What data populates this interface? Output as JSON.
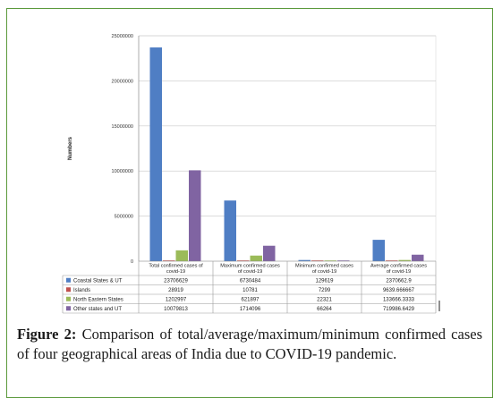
{
  "chart_data": {
    "type": "bar",
    "ylabel": "Numbers",
    "ylim": [
      0,
      25000000
    ],
    "yticks": [
      "0",
      "5000000",
      "10000000",
      "15000000",
      "20000000",
      "25000000"
    ],
    "grid": true,
    "legend": "data-table",
    "categories": [
      "Total confirmed cases of covid-19",
      "Maximum confirmed cases of covid-19",
      "Minimum confirmed cases of covid-19",
      "Average confirmed cases of covid-19"
    ],
    "series": [
      {
        "name": "Coastal States & UT",
        "color": "#4f7ec4",
        "values": [
          23706629,
          6730484,
          129619,
          2370662.9
        ],
        "labels": [
          "23706629",
          "6730484",
          "129619",
          "2370662.9"
        ]
      },
      {
        "name": "Islands",
        "color": "#c0504d",
        "values": [
          28919,
          10781,
          7299,
          9639.666667
        ],
        "labels": [
          "28919",
          "10781",
          "7299",
          "9639.666667"
        ]
      },
      {
        "name": "North Eastern States",
        "color": "#9bbb59",
        "values": [
          1202997,
          621897,
          22321,
          133666.3333
        ],
        "labels": [
          "1202997",
          "621897",
          "22321",
          "133666.3333"
        ]
      },
      {
        "name": "Other states and UT",
        "color": "#8064a2",
        "values": [
          10079813,
          1714096,
          66264,
          719986.6429
        ],
        "labels": [
          "10079813",
          "1714096",
          "66264",
          "719986.6429"
        ]
      }
    ]
  },
  "caption": {
    "label": "Figure 2:",
    "text": "Comparison of total/average/maximum/minimum confirmed cases of four geographical areas of India due to COVID-19 pandemic."
  }
}
